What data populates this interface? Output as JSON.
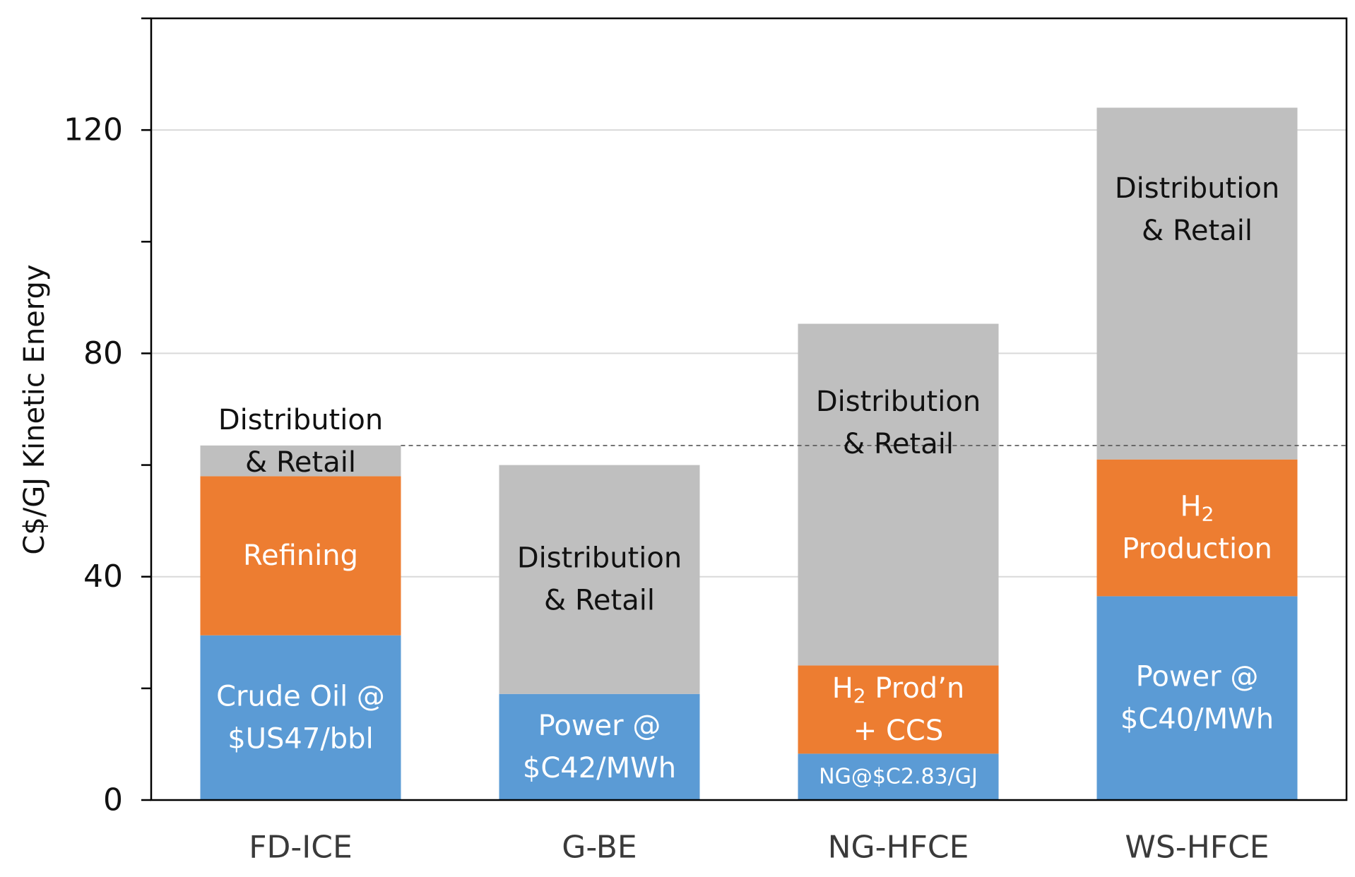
{
  "colors": {
    "feedstock": "#5b9bd5",
    "conversion": "#ed7d31",
    "distribution": "#bfbfbf",
    "gridline": "#d9d9d9",
    "axis": "#000000",
    "reference_line": "#555555"
  },
  "chart_data": {
    "type": "bar",
    "stacked": true,
    "title": "",
    "xlabel": "",
    "ylabel": "C$/GJ Kinetic Energy",
    "ylim": [
      0,
      140
    ],
    "yticks": [
      0,
      40,
      80,
      120
    ],
    "grid": true,
    "reference_line_value": 63.5,
    "categories": [
      "FD-ICE",
      "G-BE",
      "NG-HFCE",
      "WS-HFCE"
    ],
    "segments": [
      [
        {
          "value": 29.5,
          "color_key": "feedstock",
          "label_lines": [
            "Crude Oil @",
            "$US47/bbl"
          ],
          "label_pos": "inside"
        },
        {
          "value": 28.5,
          "color_key": "conversion",
          "label_lines": [
            "Refining"
          ],
          "label_pos": "inside"
        },
        {
          "value": 5.5,
          "color_key": "distribution",
          "label_lines": [
            "Distribution",
            "& Retail"
          ],
          "label_pos": "straddle"
        }
      ],
      [
        {
          "value": 19.0,
          "color_key": "feedstock",
          "label_lines": [
            "Power @",
            "$C42/MWh"
          ],
          "label_pos": "inside"
        },
        {
          "value": 41.0,
          "color_key": "distribution",
          "label_lines": [
            "Distribution",
            "& Retail"
          ],
          "label_pos": "inside"
        }
      ],
      [
        {
          "value": 8.3,
          "color_key": "feedstock",
          "label_lines": [
            "NG@$C2.83/GJ"
          ],
          "label_pos": "inside",
          "small": true
        },
        {
          "value": 15.8,
          "color_key": "conversion",
          "label_lines": [
            "H2 Prod’n",
            "+ CCS"
          ],
          "label_pos": "inside"
        },
        {
          "value": 61.2,
          "color_key": "distribution",
          "label_lines": [
            "Distribution",
            "& Retail"
          ],
          "label_pos": "upper"
        }
      ],
      [
        {
          "value": 36.5,
          "color_key": "feedstock",
          "label_lines": [
            "Power @",
            "$C40/MWh"
          ],
          "label_pos": "inside"
        },
        {
          "value": 24.5,
          "color_key": "conversion",
          "label_lines": [
            "H2",
            "Production"
          ],
          "label_pos": "inside"
        },
        {
          "value": 63.0,
          "color_key": "distribution",
          "label_lines": [
            "Distribution",
            "& Retail"
          ],
          "label_pos": "upper"
        }
      ]
    ]
  }
}
